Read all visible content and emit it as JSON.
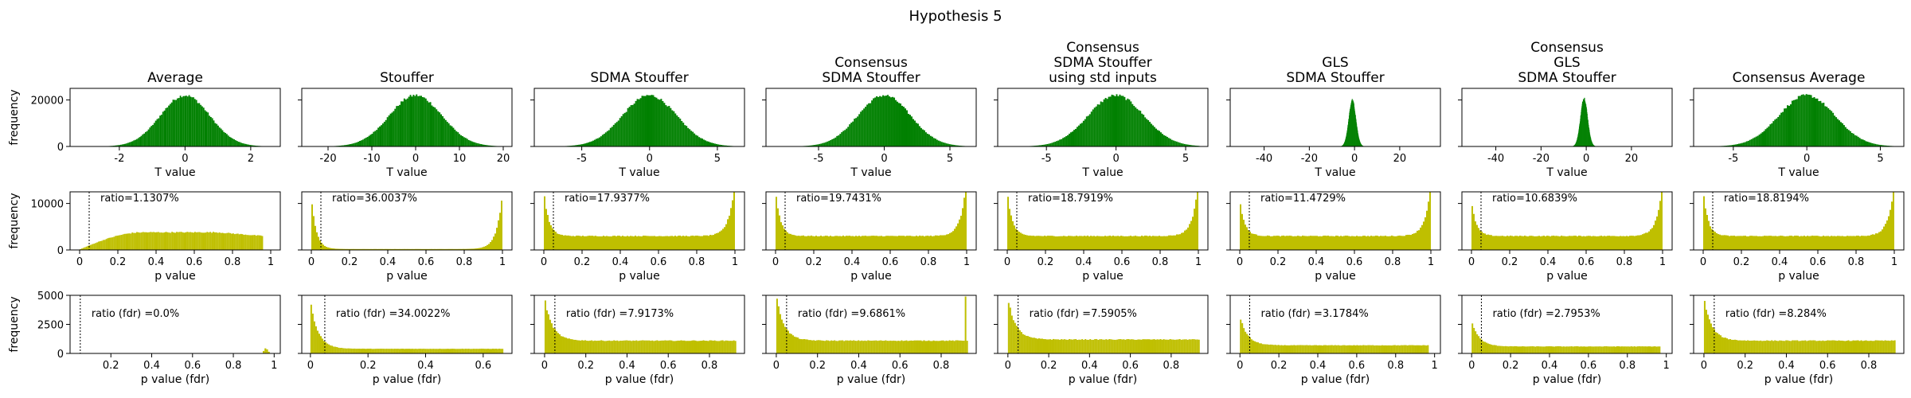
{
  "figure": {
    "title": "Hypothesis 5"
  },
  "colors": {
    "t_hist": "#008000",
    "p_hist": "#bfbf00",
    "axis": "#000000",
    "threshold_line": "#000000"
  },
  "row_labels": {
    "ylabel": "frequency",
    "row1_xlabel": "T value",
    "row2_xlabel": "p value",
    "row3_xlabel": "p value (fdr)"
  },
  "columns": [
    {
      "title": [
        "Average"
      ],
      "ratio": "ratio=1.1307%",
      "ratio_fdr": "ratio (fdr) =0.0%"
    },
    {
      "title": [
        "Stouffer"
      ],
      "ratio": "ratio=36.0037%",
      "ratio_fdr": "ratio (fdr) =34.0022%"
    },
    {
      "title": [
        "SDMA Stouffer"
      ],
      "ratio": "ratio=17.9377%",
      "ratio_fdr": "ratio (fdr) =7.9173%"
    },
    {
      "title": [
        "Consensus",
        "SDMA Stouffer"
      ],
      "ratio": "ratio=19.7431%",
      "ratio_fdr": "ratio (fdr) =9.6861%"
    },
    {
      "title": [
        "Consensus",
        "SDMA Stouffer",
        "using std inputs"
      ],
      "ratio": "ratio=18.7919%",
      "ratio_fdr": "ratio (fdr) =7.5905%"
    },
    {
      "title": [
        "GLS",
        "SDMA Stouffer"
      ],
      "ratio": "ratio=11.4729%",
      "ratio_fdr": "ratio (fdr) =3.1784%"
    },
    {
      "title": [
        "Consensus",
        "GLS",
        "SDMA Stouffer"
      ],
      "ratio": "ratio=10.6839%",
      "ratio_fdr": "ratio (fdr) =2.7953%"
    },
    {
      "title": [
        "Consensus Average"
      ],
      "ratio": "ratio=18.8194%",
      "ratio_fdr": "ratio (fdr) =8.284%"
    }
  ],
  "chart_data": [
    {
      "row": "t_value",
      "type": "bar",
      "xlabel": "T value",
      "ylabel": "frequency",
      "ylim": [
        0,
        25000
      ],
      "yticks": [
        0,
        20000
      ],
      "shared_y": true,
      "panels": [
        {
          "xlim": [
            -3.5,
            2.9
          ],
          "xticks": [
            -2,
            0,
            2
          ],
          "distribution": {
            "kind": "normal",
            "mean": 0.0,
            "sd": 0.75,
            "peak": 22000,
            "min": -2.9,
            "max": 2.4
          }
        },
        {
          "xlim": [
            -26,
            22
          ],
          "xticks": [
            -20,
            -10,
            0,
            10,
            20
          ],
          "distribution": {
            "kind": "normal",
            "mean": 0.0,
            "sd": 6.0,
            "peak": 22000,
            "min": -22,
            "max": 20
          }
        },
        {
          "xlim": [
            -8.5,
            7
          ],
          "xticks": [
            -5,
            0,
            5
          ],
          "distribution": {
            "kind": "normal",
            "mean": 0.0,
            "sd": 2.0,
            "peak": 22000,
            "min": -7.6,
            "max": 6.4
          }
        },
        {
          "xlim": [
            -9,
            7
          ],
          "xticks": [
            -5,
            0,
            5
          ],
          "distribution": {
            "kind": "normal",
            "mean": 0.0,
            "sd": 2.0,
            "peak": 22000,
            "min": -8,
            "max": 6.5
          }
        },
        {
          "xlim": [
            -8.5,
            6.6
          ],
          "xticks": [
            -5,
            0,
            5
          ],
          "distribution": {
            "kind": "normal",
            "mean": 0.0,
            "sd": 2.0,
            "peak": 22000,
            "min": -7.6,
            "max": 6
          }
        },
        {
          "xlim": [
            -55,
            38
          ],
          "xticks": [
            -40,
            -20,
            0,
            20
          ],
          "distribution": {
            "kind": "normal",
            "mean": -1.0,
            "sd": 1.6,
            "peak": 20000,
            "min": -8,
            "max": 6
          }
        },
        {
          "xlim": [
            -55,
            38
          ],
          "xticks": [
            -40,
            -20,
            0,
            20
          ],
          "distribution": {
            "kind": "normal",
            "mean": -1.0,
            "sd": 1.6,
            "peak": 21000,
            "min": -8,
            "max": 6
          }
        },
        {
          "xlim": [
            -7.7,
            6.6
          ],
          "xticks": [
            -5,
            0,
            5
          ],
          "distribution": {
            "kind": "normal",
            "mean": 0.0,
            "sd": 1.9,
            "peak": 22000,
            "min": -6.8,
            "max": 6
          }
        }
      ]
    },
    {
      "row": "p_value",
      "type": "bar",
      "xlabel": "p value",
      "ylabel": "frequency",
      "ylim": [
        0,
        12500
      ],
      "yticks": [
        0,
        10000
      ],
      "shared_y": true,
      "threshold": 0.05,
      "panels": [
        {
          "xlim": [
            -0.05,
            1.05
          ],
          "xticks": [
            0.0,
            0.2,
            0.4,
            0.6,
            0.8,
            1.0
          ],
          "distribution": {
            "kind": "hump",
            "min": 0.0,
            "max": 0.96,
            "edge_low": 100,
            "mid": 3800,
            "peak_at": 0.45,
            "edge_high": 3000
          }
        },
        {
          "xlim": [
            -0.05,
            1.05
          ],
          "xticks": [
            0.0,
            0.2,
            0.4,
            0.6,
            0.8,
            1.0
          ],
          "distribution": {
            "kind": "u",
            "min": 0.0,
            "max": 1.0,
            "edge_low": 11500,
            "mid": 200,
            "edge_high": 12000
          }
        },
        {
          "xlim": [
            -0.05,
            1.05
          ],
          "xticks": [
            0.0,
            0.2,
            0.4,
            0.6,
            0.8,
            1.0
          ],
          "distribution": {
            "kind": "u",
            "min": 0.0,
            "max": 1.0,
            "edge_low": 10000,
            "mid": 3000,
            "edge_high": 12000
          }
        },
        {
          "xlim": [
            -0.05,
            1.05
          ],
          "xticks": [
            0.0,
            0.2,
            0.4,
            0.6,
            0.8,
            1.0
          ],
          "distribution": {
            "kind": "u",
            "min": 0.0,
            "max": 1.0,
            "edge_low": 10000,
            "mid": 3000,
            "edge_high": 12000
          }
        },
        {
          "xlim": [
            -0.05,
            1.05
          ],
          "xticks": [
            0.0,
            0.2,
            0.4,
            0.6,
            0.8,
            1.0
          ],
          "distribution": {
            "kind": "u",
            "min": 0.0,
            "max": 1.0,
            "edge_low": 10000,
            "mid": 3000,
            "edge_high": 11500
          }
        },
        {
          "xlim": [
            -0.05,
            1.05
          ],
          "xticks": [
            0.0,
            0.2,
            0.4,
            0.6,
            0.8,
            1.0
          ],
          "distribution": {
            "kind": "u",
            "min": 0.0,
            "max": 1.0,
            "edge_low": 8000,
            "mid": 3000,
            "edge_high": 11000
          }
        },
        {
          "xlim": [
            -0.05,
            1.05
          ],
          "xticks": [
            0.0,
            0.2,
            0.4,
            0.6,
            0.8,
            1.0
          ],
          "distribution": {
            "kind": "u",
            "min": 0.0,
            "max": 1.0,
            "edge_low": 7500,
            "mid": 3000,
            "edge_high": 11000
          }
        },
        {
          "xlim": [
            -0.05,
            1.05
          ],
          "xticks": [
            0.0,
            0.2,
            0.4,
            0.6,
            0.8,
            1.0
          ],
          "distribution": {
            "kind": "u",
            "min": 0.0,
            "max": 1.0,
            "edge_low": 10000,
            "mid": 3000,
            "edge_high": 11500
          }
        }
      ]
    },
    {
      "row": "p_value_fdr",
      "type": "bar",
      "xlabel": "p value (fdr)",
      "ylabel": "frequency",
      "ylim": [
        0,
        5000
      ],
      "yticks": [
        0,
        2500,
        5000
      ],
      "shared_y": true,
      "threshold": 0.05,
      "panels": [
        {
          "xlim": [
            0.0,
            1.03
          ],
          "xticks": [
            0.2,
            0.4,
            0.6,
            0.8,
            1.0
          ],
          "distribution": {
            "kind": "spike",
            "at": 0.96,
            "height": 500,
            "width": 0.02,
            "base": 0
          }
        },
        {
          "xlim": [
            -0.03,
            0.7
          ],
          "xticks": [
            0.0,
            0.2,
            0.4,
            0.6
          ],
          "distribution": {
            "kind": "decay",
            "min": 0.0,
            "max": 0.67,
            "edge_low": 4500,
            "tail": 400,
            "spike_at": null
          }
        },
        {
          "xlim": [
            -0.05,
            0.97
          ],
          "xticks": [
            0.0,
            0.2,
            0.4,
            0.6,
            0.8
          ],
          "distribution": {
            "kind": "decay",
            "min": 0.0,
            "max": 0.93,
            "edge_low": 4800,
            "tail": 1100,
            "spike_at": null
          }
        },
        {
          "xlim": [
            -0.05,
            0.97
          ],
          "xticks": [
            0.0,
            0.2,
            0.4,
            0.6,
            0.8
          ],
          "distribution": {
            "kind": "decay",
            "min": 0.0,
            "max": 0.93,
            "edge_low": 5000,
            "tail": 1100,
            "spike_at": 0.92
          }
        },
        {
          "xlim": [
            -0.05,
            0.98
          ],
          "xticks": [
            0.0,
            0.2,
            0.4,
            0.6,
            0.8
          ],
          "distribution": {
            "kind": "decay",
            "min": 0.0,
            "max": 0.94,
            "edge_low": 4800,
            "tail": 1200,
            "spike_at": null
          }
        },
        {
          "xlim": [
            -0.05,
            1.03
          ],
          "xticks": [
            0.0,
            0.2,
            0.4,
            0.6,
            0.8,
            1.0
          ],
          "distribution": {
            "kind": "decay",
            "min": 0.0,
            "max": 0.97,
            "edge_low": 3200,
            "tail": 700,
            "spike_at": null
          }
        },
        {
          "xlim": [
            -0.05,
            1.03
          ],
          "xticks": [
            0.0,
            0.2,
            0.4,
            0.6,
            0.8,
            1.0
          ],
          "distribution": {
            "kind": "decay",
            "min": 0.0,
            "max": 0.97,
            "edge_low": 2800,
            "tail": 600,
            "spike_at": 0.97
          }
        },
        {
          "xlim": [
            -0.05,
            0.97
          ],
          "xticks": [
            0.0,
            0.2,
            0.4,
            0.6,
            0.8
          ],
          "distribution": {
            "kind": "decay",
            "min": 0.0,
            "max": 0.93,
            "edge_low": 4800,
            "tail": 1100,
            "spike_at": null
          }
        }
      ]
    }
  ]
}
